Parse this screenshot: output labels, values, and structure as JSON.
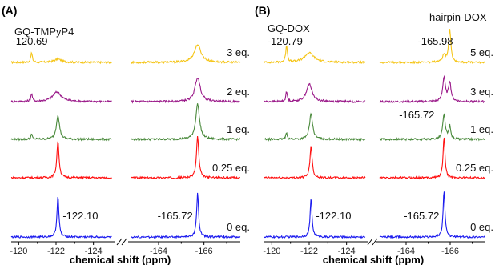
{
  "chart_data": {
    "type": "line",
    "xlabel": "chemical shift (ppm)",
    "panels": [
      {
        "label": "(A)",
        "title_left": "GQ-TMPyP4",
        "colors": [
          "#f5c518",
          "#9b1b8a",
          "#4a8a3c",
          "#ff1010",
          "#1a1aee"
        ],
        "left_axis": {
          "ticks": [
            "-120",
            "-122",
            "-124"
          ],
          "range": [
            -119.6,
            -125.0
          ]
        },
        "right_axis": {
          "ticks": [
            "-164",
            "-166"
          ],
          "range": [
            -162.8,
            -167.6
          ]
        },
        "annotations": [
          {
            "text": "-120.69",
            "trace": 0,
            "segment": "left",
            "ppm": -120.69
          },
          {
            "text": "-122.10",
            "trace": 4,
            "segment": "left",
            "ppm": -122.1
          },
          {
            "text": "-165.72",
            "trace": 4,
            "segment": "right",
            "ppm": -165.72
          }
        ],
        "traces": [
          {
            "label": "3 eq.",
            "left": [
              {
                "ppm": -120.69,
                "h": 12,
                "w": 0.05
              },
              {
                "ppm": -122.1,
                "h": 4,
                "w": 0.25
              }
            ],
            "right": [
              {
                "ppm": -165.72,
                "h": 22,
                "w": 0.18
              }
            ]
          },
          {
            "label": "2 eq.",
            "left": [
              {
                "ppm": -120.69,
                "h": 10,
                "w": 0.05
              },
              {
                "ppm": -122.05,
                "h": 12,
                "w": 0.28
              }
            ],
            "right": [
              {
                "ppm": -165.72,
                "h": 30,
                "w": 0.14
              }
            ]
          },
          {
            "label": "1 eq.",
            "left": [
              {
                "ppm": -120.69,
                "h": 6,
                "w": 0.05
              },
              {
                "ppm": -122.1,
                "h": 30,
                "w": 0.1
              }
            ],
            "right": [
              {
                "ppm": -165.72,
                "h": 44,
                "w": 0.1
              }
            ]
          },
          {
            "label": "0.25 eq.",
            "left": [
              {
                "ppm": -122.1,
                "h": 46,
                "w": 0.07
              }
            ],
            "right": [
              {
                "ppm": -165.72,
                "h": 52,
                "w": 0.06
              }
            ]
          },
          {
            "label": "0 eq.",
            "left": [
              {
                "ppm": -122.1,
                "h": 52,
                "w": 0.06
              }
            ],
            "right": [
              {
                "ppm": -165.72,
                "h": 56,
                "w": 0.05
              }
            ]
          }
        ]
      },
      {
        "label": "(B)",
        "title_left": "GQ-DOX",
        "title_right": "hairpin-DOX",
        "colors": [
          "#f5c518",
          "#9b1b8a",
          "#4a8a3c",
          "#ff1010",
          "#1a1aee"
        ],
        "left_axis": {
          "ticks": [
            "-120",
            "-122",
            "-124"
          ],
          "range": [
            -119.6,
            -125.0
          ]
        },
        "right_axis": {
          "ticks": [
            "-164",
            "-166"
          ],
          "range": [
            -162.8,
            -167.6
          ]
        },
        "annotations": [
          {
            "text": "-120.79",
            "trace": 0,
            "segment": "left",
            "ppm": -120.79
          },
          {
            "text": "-165.98",
            "trace": 0,
            "segment": "right",
            "ppm": -165.98
          },
          {
            "text": "-165.72",
            "trace": 2,
            "segment": "right",
            "ppm": -165.72
          },
          {
            "text": "-122.10",
            "trace": 4,
            "segment": "left",
            "ppm": -122.1
          },
          {
            "text": "-165.72",
            "trace": 4,
            "segment": "right",
            "ppm": -165.72
          }
        ],
        "traces": [
          {
            "label": "5 eq.",
            "left": [
              {
                "ppm": -120.79,
                "h": 22,
                "w": 0.05
              },
              {
                "ppm": -122.0,
                "h": 12,
                "w": 0.3
              }
            ],
            "right": [
              {
                "ppm": -165.98,
                "h": 42,
                "w": 0.06
              },
              {
                "ppm": -165.72,
                "h": 10,
                "w": 0.08
              }
            ]
          },
          {
            "label": "3 eq.",
            "left": [
              {
                "ppm": -120.79,
                "h": 12,
                "w": 0.05
              },
              {
                "ppm": -122.0,
                "h": 22,
                "w": 0.18
              }
            ],
            "right": [
              {
                "ppm": -165.98,
                "h": 24,
                "w": 0.07
              },
              {
                "ppm": -165.72,
                "h": 30,
                "w": 0.07
              }
            ]
          },
          {
            "label": "1 eq.",
            "left": [
              {
                "ppm": -120.79,
                "h": 8,
                "w": 0.05
              },
              {
                "ppm": -122.1,
                "h": 32,
                "w": 0.1
              }
            ],
            "right": [
              {
                "ppm": -165.98,
                "h": 16,
                "w": 0.05
              },
              {
                "ppm": -165.72,
                "h": 30,
                "w": 0.07
              }
            ]
          },
          {
            "label": "0.25 eq.",
            "left": [
              {
                "ppm": -122.1,
                "h": 40,
                "w": 0.07
              }
            ],
            "right": [
              {
                "ppm": -165.72,
                "h": 52,
                "w": 0.05
              }
            ]
          },
          {
            "label": "0 eq.",
            "left": [
              {
                "ppm": -122.1,
                "h": 48,
                "w": 0.06
              }
            ],
            "right": [
              {
                "ppm": -165.72,
                "h": 58,
                "w": 0.05
              }
            ]
          }
        ]
      }
    ]
  }
}
